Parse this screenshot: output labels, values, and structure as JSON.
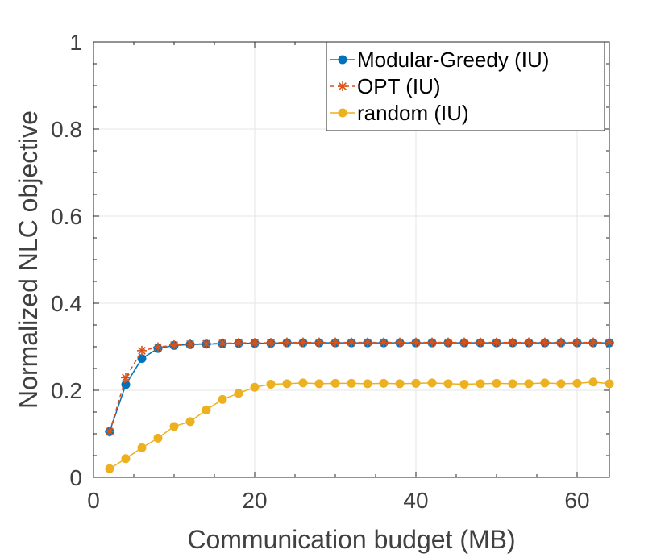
{
  "chart_data": {
    "type": "line",
    "title": "",
    "xlabel": "Communication budget (MB)",
    "ylabel": "Normalized NLC objective",
    "xlim": [
      0,
      64
    ],
    "ylim": [
      0,
      1
    ],
    "grid": true,
    "legend_position": "top-right",
    "xticks": [
      0,
      20,
      40,
      60
    ],
    "xtick_labels": [
      "0",
      "20",
      "40",
      "60"
    ],
    "yticks": [
      0,
      0.2,
      0.4,
      0.6,
      0.8,
      1
    ],
    "ytick_labels": [
      "0",
      "0.2",
      "0.4",
      "0.6",
      "0.8",
      "1"
    ],
    "x": [
      2,
      4,
      6,
      8,
      10,
      12,
      14,
      16,
      18,
      20,
      22,
      24,
      26,
      28,
      30,
      32,
      34,
      36,
      38,
      40,
      42,
      44,
      46,
      48,
      50,
      52,
      54,
      56,
      58,
      60,
      62,
      64
    ],
    "series": [
      {
        "name": "Modular-Greedy (IU)",
        "color": "#0072BD",
        "marker": "circle",
        "line_style": "solid",
        "values": [
          0.105,
          0.213,
          0.273,
          0.296,
          0.303,
          0.305,
          0.306,
          0.307,
          0.308,
          0.308,
          0.308,
          0.309,
          0.309,
          0.309,
          0.309,
          0.309,
          0.309,
          0.309,
          0.309,
          0.309,
          0.309,
          0.309,
          0.309,
          0.309,
          0.309,
          0.309,
          0.309,
          0.309,
          0.309,
          0.309,
          0.309,
          0.309
        ]
      },
      {
        "name": "OPT (IU)",
        "color": "#D95319",
        "marker": "asterisk",
        "line_style": "dashed",
        "values": [
          0.105,
          0.229,
          0.291,
          0.299,
          0.304,
          0.306,
          0.307,
          0.308,
          0.309,
          0.309,
          0.309,
          0.31,
          0.31,
          0.31,
          0.31,
          0.31,
          0.31,
          0.31,
          0.31,
          0.31,
          0.31,
          0.31,
          0.31,
          0.31,
          0.31,
          0.31,
          0.31,
          0.31,
          0.31,
          0.31,
          0.31,
          0.31
        ]
      },
      {
        "name": "random (IU)",
        "color": "#EDB120",
        "marker": "circle",
        "line_style": "solid",
        "values": [
          0.02,
          0.043,
          0.068,
          0.09,
          0.117,
          0.128,
          0.155,
          0.179,
          0.193,
          0.207,
          0.214,
          0.215,
          0.217,
          0.215,
          0.216,
          0.216,
          0.215,
          0.216,
          0.215,
          0.216,
          0.217,
          0.215,
          0.214,
          0.215,
          0.216,
          0.215,
          0.215,
          0.217,
          0.215,
          0.216,
          0.219,
          0.215
        ]
      }
    ]
  }
}
